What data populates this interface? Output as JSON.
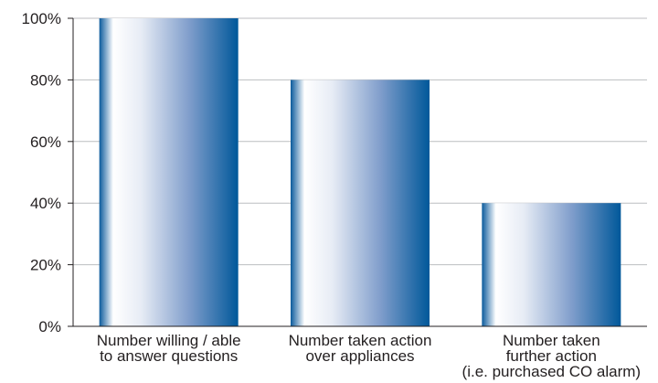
{
  "chart_data": {
    "type": "bar",
    "categories": [
      [
        "Number willing / able",
        "to answer questions"
      ],
      [
        "Number taken action",
        "over appliances"
      ],
      [
        "Number taken",
        "further action",
        "(i.e. purchased CO alarm)"
      ]
    ],
    "values": [
      100,
      80,
      40
    ],
    "ylim": [
      0,
      100
    ],
    "yticks": [
      "0%",
      "20%",
      "40%",
      "60%",
      "80%",
      "100%"
    ],
    "grid": true,
    "colors": {
      "bar_dark": "#005a9c",
      "bar_light": "#ffffff",
      "grid": "#bcbec0",
      "axis": "#231f20"
    }
  }
}
